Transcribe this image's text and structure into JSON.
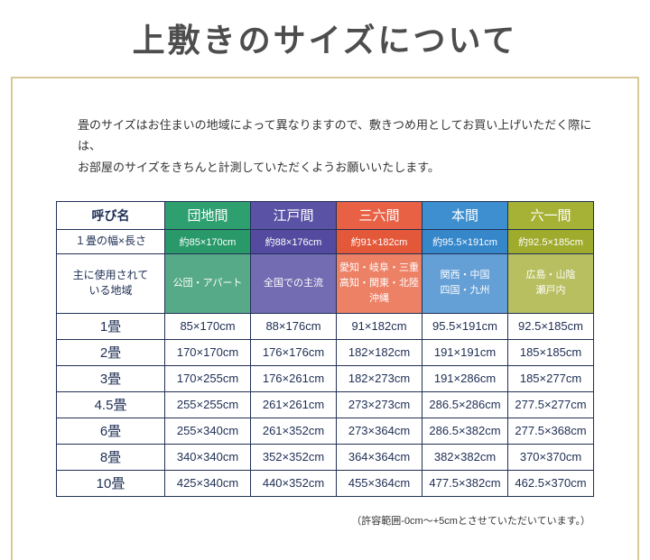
{
  "page": {
    "title": "上敷きのサイズについて",
    "intro": "畳のサイズはお住まいの地域によって異なりますので、敷きつめ用としてお買い上げいただく際には、\nお部屋のサイズをきちんと計測していただくようお願いいたします。",
    "footnote": "（許容範囲-0cm〜+5cmとさせていただいています。）"
  },
  "table": {
    "corner_label": "呼び名",
    "size_row_label": "１畳の幅×長さ",
    "region_row_label": "主に使用されて\nいる地域",
    "columns": [
      {
        "name": "団地間",
        "size": "約85×170cm",
        "region": "公団・アパート",
        "color_header": "#2ea06f",
        "color_size": "#29996a",
        "color_region": "#57aa88"
      },
      {
        "name": "江戸間",
        "size": "約88×176cm",
        "region": "全国での主流",
        "color_header": "#5a52a5",
        "color_size": "#544ba0",
        "color_region": "#746cb2"
      },
      {
        "name": "三六間",
        "size": "約91×182cm",
        "region": "愛知・岐阜・三重\n高知・関東・北陸\n沖縄",
        "color_header": "#e86145",
        "color_size": "#e4583a",
        "color_region": "#ec8166"
      },
      {
        "name": "本間",
        "size": "約95.5×191cm",
        "region": "関西・中国\n四国・九州",
        "color_header": "#3e8fd0",
        "color_size": "#3687ca",
        "color_region": "#649fd6"
      },
      {
        "name": "六一間",
        "size": "約92.5×185cm",
        "region": "広島・山陰\n瀬戸内",
        "color_header": "#a6b235",
        "color_size": "#9eab2d",
        "color_region": "#b7bf60"
      }
    ],
    "rows": [
      {
        "label": "1畳",
        "values": [
          "85×170cm",
          "88×176cm",
          "91×182cm",
          "95.5×191cm",
          "92.5×185cm"
        ]
      },
      {
        "label": "2畳",
        "values": [
          "170×170cm",
          "176×176cm",
          "182×182cm",
          "191×191cm",
          "185×185cm"
        ]
      },
      {
        "label": "3畳",
        "values": [
          "170×255cm",
          "176×261cm",
          "182×273cm",
          "191×286cm",
          "185×277cm"
        ]
      },
      {
        "label": "4.5畳",
        "values": [
          "255×255cm",
          "261×261cm",
          "273×273cm",
          "286.5×286cm",
          "277.5×277cm"
        ]
      },
      {
        "label": "6畳",
        "values": [
          "255×340cm",
          "261×352cm",
          "273×364cm",
          "286.5×382cm",
          "277.5×368cm"
        ]
      },
      {
        "label": "8畳",
        "values": [
          "340×340cm",
          "352×352cm",
          "364×364cm",
          "382×382cm",
          "370×370cm"
        ]
      },
      {
        "label": "10畳",
        "values": [
          "425×340cm",
          "440×352cm",
          "455×364cm",
          "477.5×382cm",
          "462.5×370cm"
        ]
      }
    ]
  }
}
